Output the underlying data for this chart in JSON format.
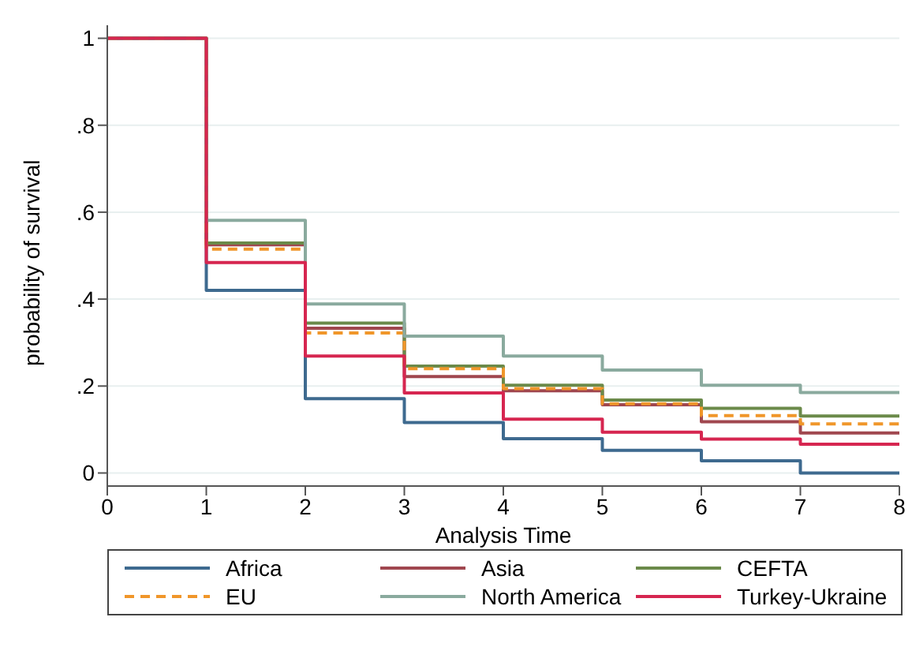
{
  "chart_data": {
    "type": "step",
    "xlabel": "Analysis Time",
    "ylabel": "probability of survival",
    "x": [
      0,
      1,
      2,
      3,
      4,
      5,
      6,
      7,
      8
    ],
    "series": [
      {
        "name": "Africa",
        "color": "#3e6a8f",
        "values": [
          1,
          0.42,
          0.171,
          0.116,
          0.079,
          0.052,
          0.028,
          0.0,
          0.0
        ]
      },
      {
        "name": "Asia",
        "color": "#a0474f",
        "values": [
          1,
          0.525,
          0.333,
          0.222,
          0.189,
          0.157,
          0.118,
          0.092,
          0.092
        ]
      },
      {
        "name": "CEFTA",
        "color": "#6b8a4a",
        "values": [
          1,
          0.529,
          0.345,
          0.246,
          0.202,
          0.168,
          0.149,
          0.131,
          0.131
        ]
      },
      {
        "name": "EU",
        "color": "#f0962a",
        "line_style": "dashed",
        "values": [
          1,
          0.515,
          0.322,
          0.24,
          0.194,
          0.159,
          0.132,
          0.113,
          0.113
        ]
      },
      {
        "name": "North America",
        "color": "#8aaa9e",
        "values": [
          1,
          0.581,
          0.389,
          0.315,
          0.269,
          0.237,
          0.202,
          0.185,
          0.185
        ]
      },
      {
        "name": "Turkey-Ukraine",
        "color": "#d62650",
        "values": [
          1,
          0.484,
          0.269,
          0.184,
          0.124,
          0.094,
          0.078,
          0.066,
          0.066
        ]
      }
    ],
    "xlim": [
      0,
      8
    ],
    "xticks": [
      0,
      1,
      2,
      3,
      4,
      5,
      6,
      7,
      8
    ],
    "ylim": [
      -0.03,
      1.03
    ],
    "yticks": [
      0,
      {
        "value": 0.2,
        "label": ".2"
      },
      {
        "value": 0.4,
        "label": ".4"
      },
      {
        "value": 0.6,
        "label": ".6"
      },
      {
        "value": 0.8,
        "label": ".8"
      },
      1
    ],
    "grid": "y",
    "legend": "bottom",
    "line_style": "solid",
    "marker": "none"
  }
}
